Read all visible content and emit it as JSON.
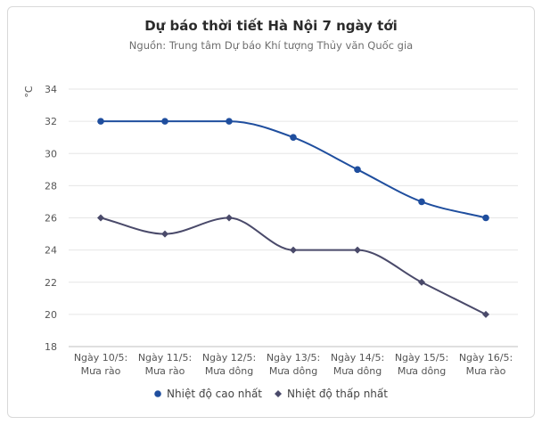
{
  "chart_data": {
    "type": "line",
    "title": "Dự báo thời tiết Hà Nội 7 ngày tới",
    "subtitle": "Nguồn: Trung tâm Dự báo Khí tượng Thủy văn Quốc gia",
    "ylabel": "°C",
    "xlabel": "",
    "ylim": [
      18,
      34
    ],
    "yticks": [
      18,
      20,
      22,
      24,
      26,
      28,
      30,
      32,
      34
    ],
    "grid": true,
    "legend_position": "bottom",
    "categories": [
      [
        "Ngày 10/5:",
        "Mưa rào"
      ],
      [
        "Ngày 11/5:",
        "Mưa rào"
      ],
      [
        "Ngày 12/5:",
        "Mưa dông"
      ],
      [
        "Ngày 13/5:",
        "Mưa dông"
      ],
      [
        "Ngày 14/5:",
        "Mưa dông"
      ],
      [
        "Ngày 15/5:",
        "Mưa dông"
      ],
      [
        "Ngày 16/5:",
        "Mưa rào"
      ]
    ],
    "series": [
      {
        "name": "Nhiệt độ cao nhất",
        "values": [
          32,
          32,
          32,
          31,
          29,
          27,
          26
        ],
        "color": "#1f4e9e",
        "marker": "circle"
      },
      {
        "name": "Nhiệt độ thấp nhất",
        "values": [
          26,
          25,
          26,
          24,
          24,
          22,
          20
        ],
        "color": "#4a4a6a",
        "marker": "diamond"
      }
    ]
  }
}
